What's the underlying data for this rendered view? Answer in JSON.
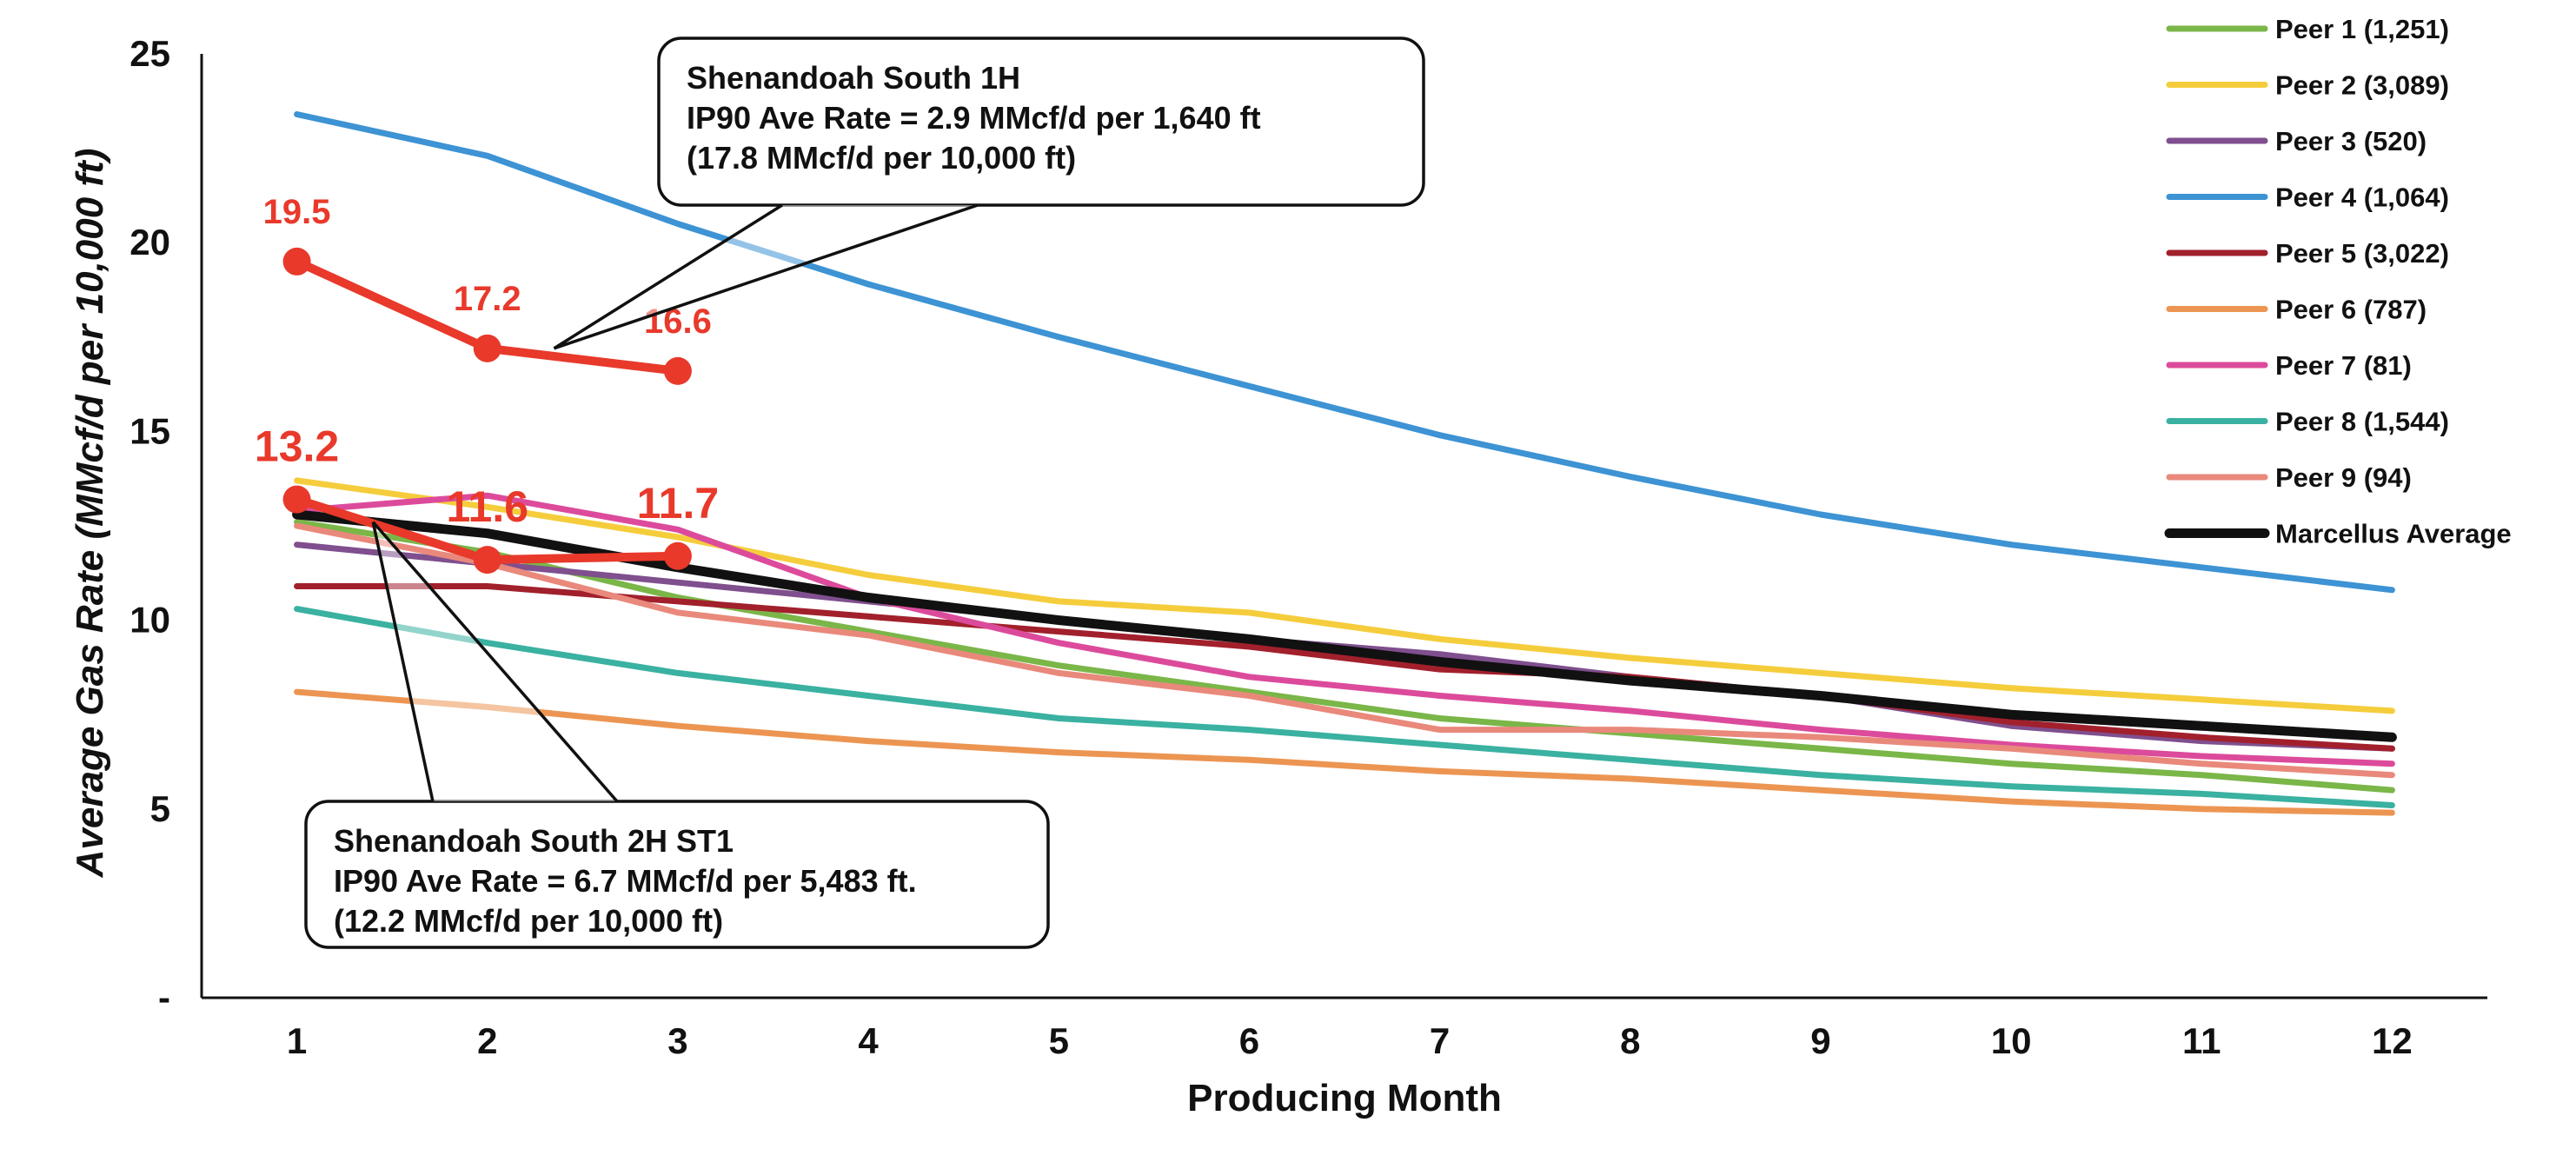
{
  "chart_data": {
    "type": "line",
    "title": "",
    "xlabel": "Producing Month",
    "ylabel": "Average Gas Rate (MMcf/d per 10,000 ft)",
    "x": [
      1,
      2,
      3,
      4,
      5,
      6,
      7,
      8,
      9,
      10,
      11,
      12
    ],
    "xlim": [
      0.5,
      12.5
    ],
    "ylim": [
      0,
      25
    ],
    "y_ticks": [
      0,
      5,
      10,
      15,
      20,
      25
    ],
    "y_tick_labels": [
      "-",
      "5",
      "10",
      "15",
      "20",
      "25"
    ],
    "grid": false,
    "legend_position": "top-right",
    "series": [
      {
        "name": "Peer 1 (1,251)",
        "color": "#7ab648",
        "values": [
          12.6,
          11.8,
          10.6,
          9.7,
          8.8,
          8.1,
          7.4,
          7.0,
          6.6,
          6.2,
          5.9,
          5.5
        ]
      },
      {
        "name": "Peer 2 (3,089)",
        "color": "#f5cd3c",
        "values": [
          13.7,
          13.0,
          12.2,
          11.2,
          10.5,
          10.2,
          9.5,
          9.0,
          8.6,
          8.2,
          7.9,
          7.6
        ]
      },
      {
        "name": "Peer 3 (520)",
        "color": "#7f4f8e",
        "values": [
          12.0,
          11.5,
          11.0,
          10.5,
          10.0,
          9.5,
          9.1,
          8.5,
          8.0,
          7.2,
          6.8,
          6.6
        ]
      },
      {
        "name": "Peer 4 (1,064)",
        "color": "#3d93d3",
        "values": [
          23.4,
          22.3,
          20.5,
          18.9,
          17.5,
          16.2,
          14.9,
          13.8,
          12.8,
          12.0,
          11.4,
          10.8
        ]
      },
      {
        "name": "Peer 5 (3,022)",
        "color": "#a1202c",
        "values": [
          10.9,
          10.9,
          10.5,
          10.1,
          9.7,
          9.3,
          8.7,
          8.5,
          8.0,
          7.3,
          6.9,
          6.6
        ]
      },
      {
        "name": "Peer 6 (787)",
        "color": "#ec9552",
        "values": [
          8.1,
          7.7,
          7.2,
          6.8,
          6.5,
          6.3,
          6.0,
          5.8,
          5.5,
          5.2,
          5.0,
          4.9
        ]
      },
      {
        "name": "Peer 7 (81)",
        "color": "#dc4b9b",
        "values": [
          12.9,
          13.3,
          12.4,
          10.6,
          9.4,
          8.5,
          8.0,
          7.6,
          7.1,
          6.7,
          6.4,
          6.2
        ]
      },
      {
        "name": "Peer 8 (1,544)",
        "color": "#3ab1a1",
        "values": [
          10.3,
          9.4,
          8.6,
          8.0,
          7.4,
          7.1,
          6.7,
          6.3,
          5.9,
          5.6,
          5.4,
          5.1
        ]
      },
      {
        "name": "Peer 9 (94)",
        "color": "#e9897b",
        "values": [
          12.5,
          11.5,
          10.2,
          9.6,
          8.6,
          8.0,
          7.1,
          7.1,
          6.9,
          6.6,
          6.2,
          5.9
        ]
      },
      {
        "name": "Marcellus Average",
        "color": "#111111",
        "values": [
          12.8,
          12.3,
          11.4,
          10.6,
          10.0,
          9.5,
          8.9,
          8.4,
          8.0,
          7.5,
          7.2,
          6.9
        ]
      }
    ],
    "highlight_series": [
      {
        "color": "#e8392b",
        "x": [
          1,
          2,
          3
        ],
        "values": [
          19.5,
          17.2,
          16.6
        ],
        "labels": [
          "19.5",
          "17.2",
          "16.6"
        ]
      },
      {
        "color": "#e8392b",
        "x": [
          1,
          2,
          3
        ],
        "values": [
          13.2,
          11.6,
          11.7
        ],
        "labels": [
          "13.2",
          "11.6",
          "11.7"
        ]
      }
    ],
    "annotations": [
      {
        "lines": [
          "Shenandoah South 1H",
          "IP90 Ave Rate = 2.9 MMcf/d per 1,640 ft",
          "(17.8 MMcf/d per 10,000 ft)"
        ],
        "points_to_x": 2.35,
        "points_to_y": 17.2
      },
      {
        "lines": [
          "Shenandoah South 2H ST1",
          "IP90 Ave Rate = 6.7 MMcf/d per 5,483 ft.",
          "(12.2 MMcf/d per 10,000 ft)"
        ],
        "points_to_x": 1.4,
        "points_to_y": 12.6
      }
    ]
  }
}
